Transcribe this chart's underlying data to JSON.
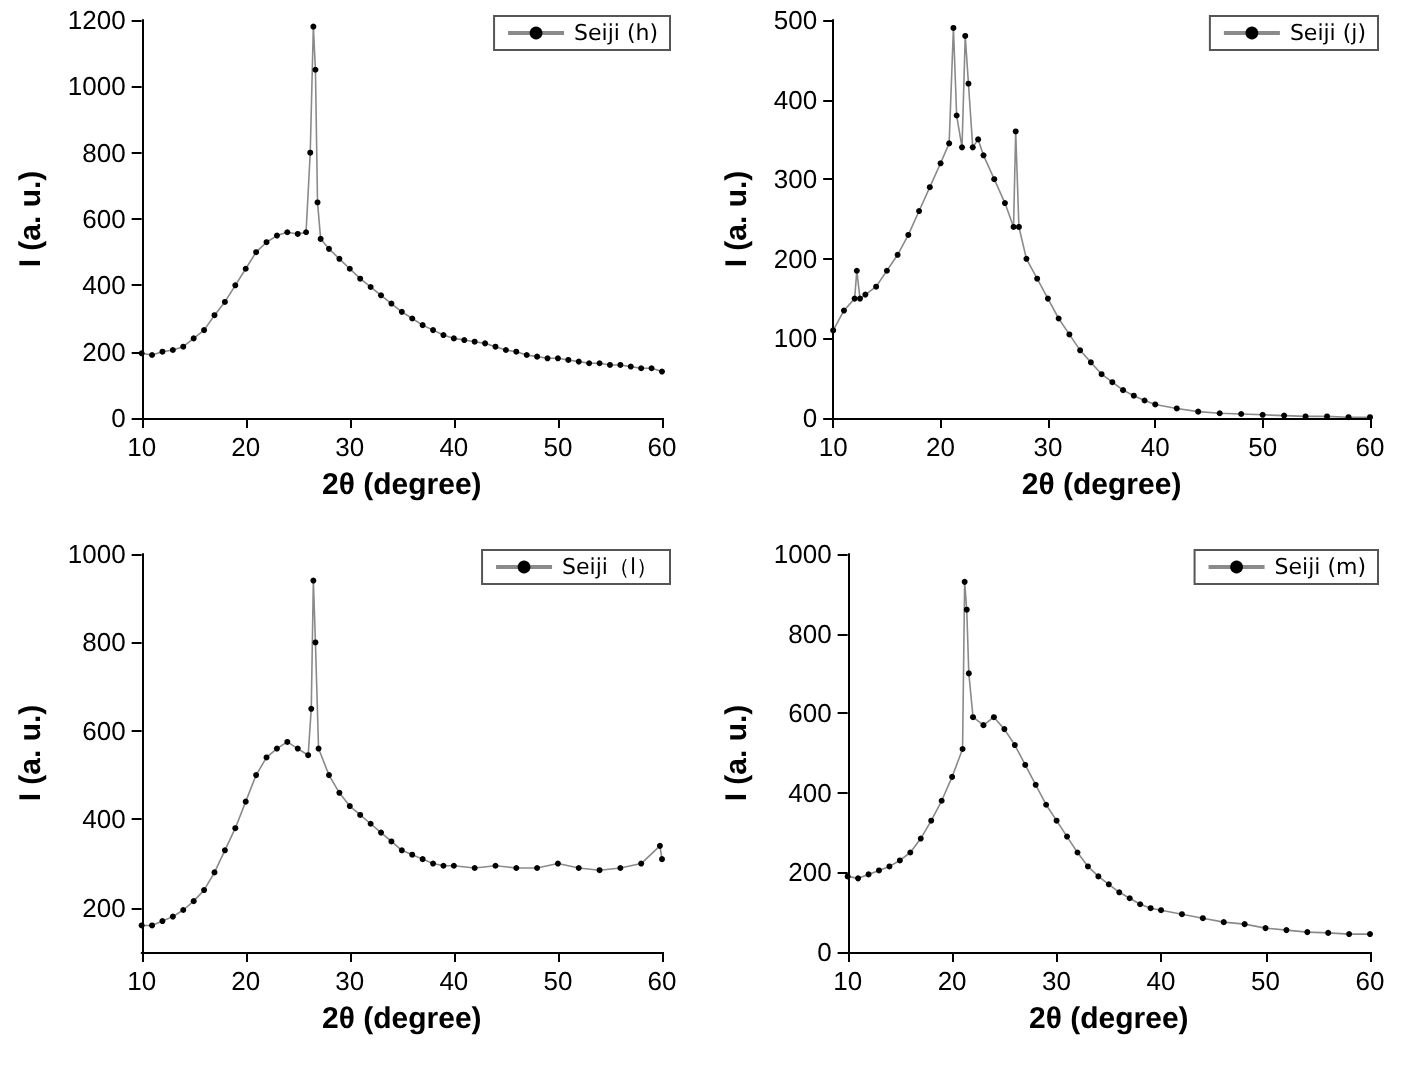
{
  "chart_data": [
    {
      "type": "line",
      "xlabel": "2θ (degree)",
      "ylabel": "I (a. u.)",
      "marker": "circle",
      "legend": "top right",
      "xlim": [
        10,
        60
      ],
      "ylim": [
        0,
        1200
      ],
      "xticks": [
        10,
        20,
        30,
        40,
        50,
        60
      ],
      "yticks": [
        0,
        200,
        400,
        600,
        800,
        1000,
        1200
      ],
      "x": [
        10,
        11,
        12,
        13,
        14,
        15,
        16,
        17,
        18,
        19,
        20,
        21,
        22,
        23,
        24,
        25,
        25.8,
        26.2,
        26.5,
        26.7,
        26.9,
        27.2,
        28,
        29,
        30,
        31,
        32,
        33,
        34,
        35,
        36,
        37,
        38,
        39,
        40,
        41,
        42,
        43,
        44,
        45,
        46,
        47,
        48,
        49,
        50,
        51,
        52,
        53,
        54,
        55,
        56,
        57,
        58,
        59,
        60
      ],
      "series": [
        {
          "name": "Seiji (h)",
          "color": "#000000",
          "values": [
            195,
            190,
            200,
            205,
            215,
            240,
            265,
            310,
            350,
            400,
            450,
            500,
            530,
            550,
            560,
            555,
            560,
            800,
            1180,
            1050,
            650,
            540,
            510,
            480,
            450,
            420,
            395,
            370,
            345,
            320,
            300,
            280,
            265,
            250,
            240,
            235,
            230,
            225,
            215,
            205,
            200,
            190,
            185,
            180,
            180,
            175,
            170,
            165,
            165,
            160,
            160,
            155,
            150,
            150,
            140
          ]
        }
      ]
    },
    {
      "type": "line",
      "xlabel": "2θ (degree)",
      "ylabel": "I (a. u.)",
      "marker": "circle",
      "legend": "top right",
      "xlim": [
        10,
        60
      ],
      "ylim": [
        0,
        500
      ],
      "xticks": [
        10,
        20,
        30,
        40,
        50,
        60
      ],
      "yticks": [
        0,
        100,
        200,
        300,
        400,
        500
      ],
      "x": [
        10,
        11,
        12,
        12.2,
        12.5,
        13,
        14,
        15,
        16,
        17,
        18,
        19,
        20,
        20.8,
        21.2,
        21.5,
        22,
        22.3,
        22.6,
        23,
        23.5,
        24,
        25,
        26,
        26.8,
        27,
        27.3,
        28,
        29,
        30,
        31,
        32,
        33,
        34,
        35,
        36,
        37,
        38,
        39,
        40,
        42,
        44,
        46,
        48,
        50,
        52,
        54,
        56,
        58,
        60
      ],
      "series": [
        {
          "name": "Seiji (j)",
          "color": "#000000",
          "values": [
            110,
            135,
            150,
            185,
            150,
            155,
            165,
            185,
            205,
            230,
            260,
            290,
            320,
            345,
            490,
            380,
            340,
            480,
            420,
            340,
            350,
            330,
            300,
            270,
            240,
            360,
            240,
            200,
            175,
            150,
            125,
            105,
            85,
            70,
            55,
            45,
            35,
            28,
            22,
            17,
            12,
            8,
            6,
            5,
            4,
            3,
            2,
            2,
            1,
            1
          ]
        }
      ]
    },
    {
      "type": "line",
      "xlabel": "2θ (degree)",
      "ylabel": "I (a. u.)",
      "marker": "circle",
      "legend": "top right",
      "xlim": [
        10,
        60
      ],
      "ylim": [
        100,
        1000
      ],
      "xticks": [
        10,
        20,
        30,
        40,
        50,
        60
      ],
      "yticks": [
        200,
        400,
        600,
        800,
        1000
      ],
      "x": [
        10,
        11,
        12,
        13,
        14,
        15,
        16,
        17,
        18,
        19,
        20,
        21,
        22,
        23,
        24,
        25,
        26,
        26.3,
        26.5,
        26.7,
        27,
        28,
        29,
        30,
        31,
        32,
        33,
        34,
        35,
        36,
        37,
        38,
        39,
        40,
        42,
        44,
        46,
        48,
        50,
        52,
        54,
        56,
        58,
        59.8,
        60
      ],
      "series": [
        {
          "name": "Seiji（l）",
          "color": "#000000",
          "values": [
            160,
            160,
            170,
            180,
            195,
            215,
            240,
            280,
            330,
            380,
            440,
            500,
            540,
            560,
            575,
            560,
            545,
            650,
            940,
            800,
            560,
            500,
            460,
            430,
            410,
            390,
            370,
            350,
            330,
            320,
            310,
            300,
            295,
            295,
            290,
            295,
            290,
            290,
            300,
            290,
            285,
            290,
            300,
            340,
            310
          ]
        }
      ]
    },
    {
      "type": "line",
      "xlabel": "2θ (degree)",
      "ylabel": "I (a. u.)",
      "marker": "circle",
      "legend": "top right",
      "xlim": [
        10,
        60
      ],
      "ylim": [
        0,
        1000
      ],
      "xticks": [
        10,
        20,
        30,
        40,
        50,
        60
      ],
      "yticks": [
        0,
        200,
        400,
        600,
        800,
        1000
      ],
      "x": [
        10,
        11,
        12,
        13,
        14,
        15,
        16,
        17,
        18,
        19,
        20,
        21,
        21.2,
        21.4,
        21.6,
        22,
        23,
        24,
        25,
        26,
        27,
        28,
        29,
        30,
        31,
        32,
        33,
        34,
        35,
        36,
        37,
        38,
        39,
        40,
        42,
        44,
        46,
        48,
        50,
        52,
        54,
        56,
        58,
        60
      ],
      "series": [
        {
          "name": "Seiji (m)",
          "color": "#000000",
          "values": [
            190,
            185,
            195,
            205,
            215,
            230,
            250,
            285,
            330,
            380,
            440,
            510,
            930,
            860,
            700,
            590,
            570,
            590,
            560,
            520,
            470,
            420,
            370,
            330,
            290,
            250,
            215,
            190,
            170,
            150,
            135,
            120,
            110,
            105,
            95,
            85,
            75,
            70,
            60,
            55,
            50,
            48,
            45,
            45
          ]
        }
      ]
    }
  ]
}
